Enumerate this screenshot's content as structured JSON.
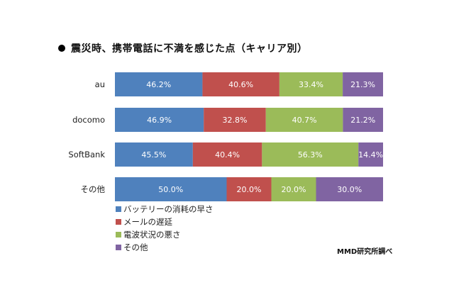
{
  "title": "震災時、携帯電話に不満を感じた点（キャリア別）",
  "source": "MMD研究所調べ",
  "colors": {
    "battery": "#4f81bd",
    "mail": "#c0504d",
    "signal": "#9bbb59",
    "other": "#8064a2"
  },
  "chart_data": {
    "type": "bar",
    "orientation": "horizontal",
    "stacked": true,
    "categories": [
      "au",
      "docomo",
      "SoftBank",
      "その他"
    ],
    "series": [
      {
        "name": "バッテリーの消耗の早さ",
        "values": [
          46.2,
          46.9,
          45.5,
          50.0
        ],
        "color": "#4f81bd"
      },
      {
        "name": "メールの遅延",
        "values": [
          40.6,
          32.8,
          40.4,
          20.0
        ],
        "color": "#c0504d"
      },
      {
        "name": "電波状況の悪さ",
        "values": [
          33.4,
          40.7,
          56.3,
          20.0
        ],
        "color": "#9bbb59"
      },
      {
        "name": "その他",
        "values": [
          21.3,
          21.2,
          14.4,
          30.0
        ],
        "color": "#8064a2"
      }
    ],
    "data_label_suffix": "%",
    "legend_position": "bottom-left",
    "grid": false
  }
}
